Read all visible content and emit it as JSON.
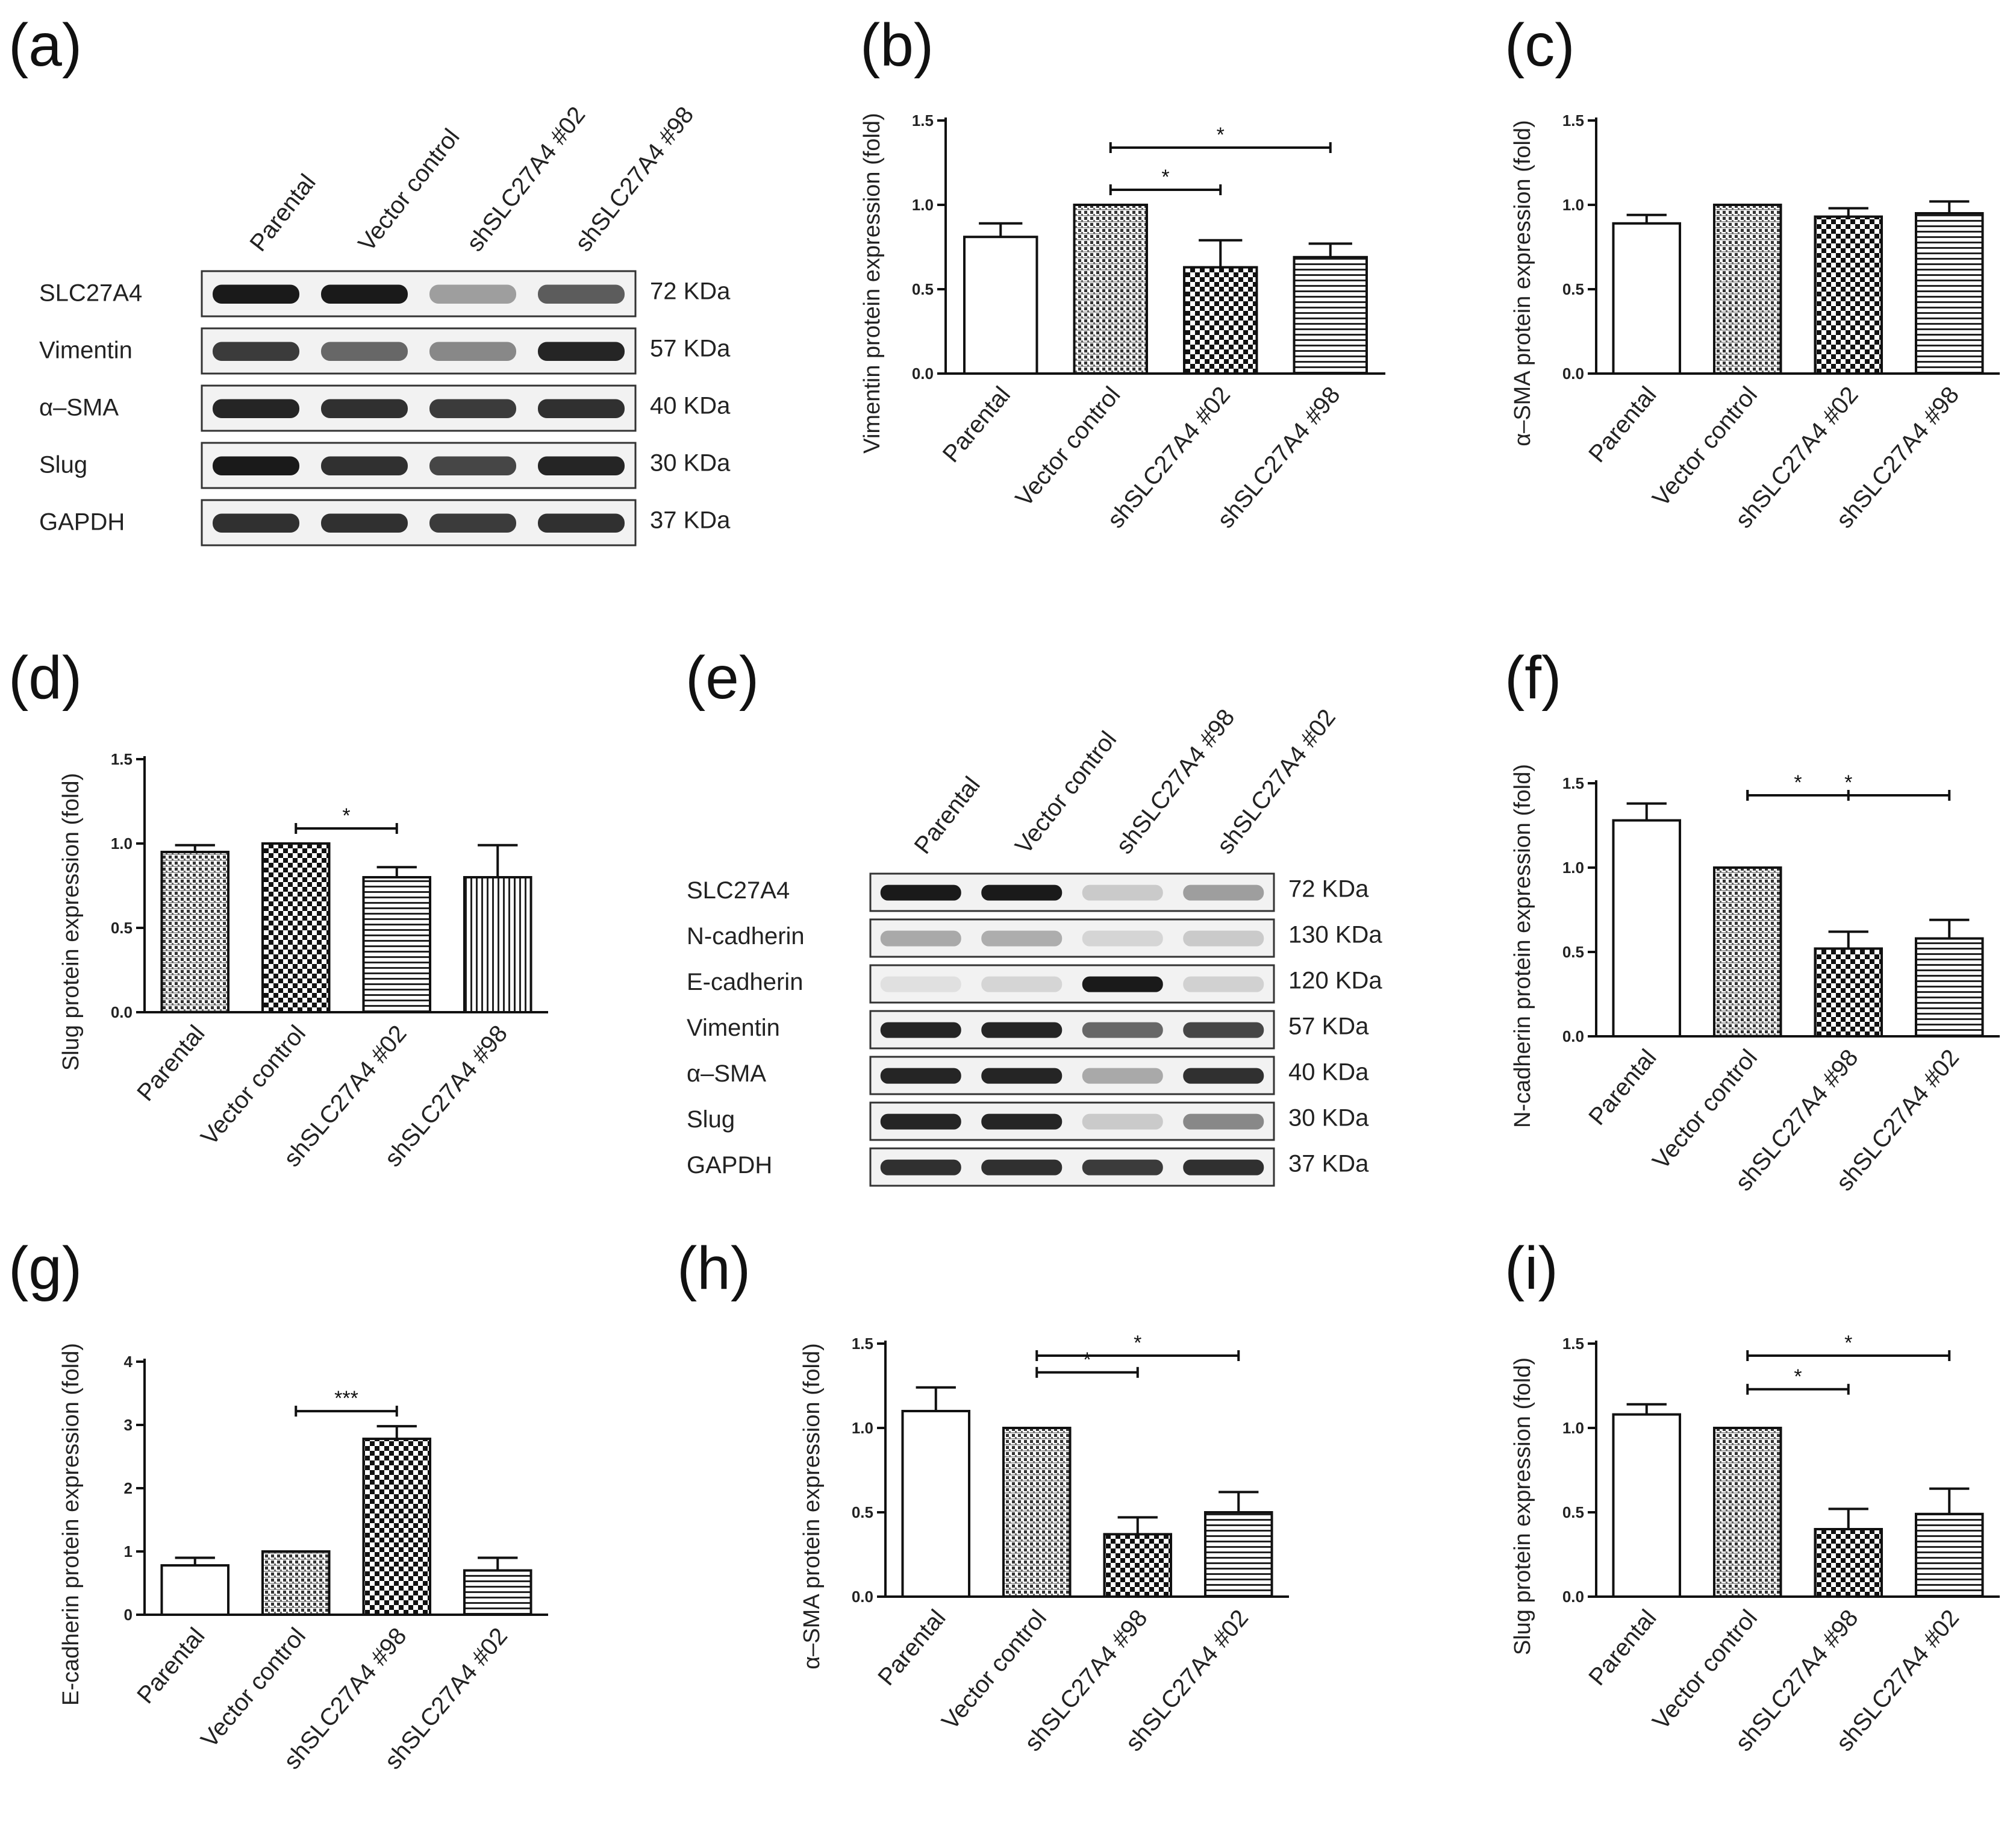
{
  "panel_labels": {
    "a": "(a)",
    "b": "(b)",
    "c": "(c)",
    "d": "(d)",
    "e": "(e)",
    "f": "(f)",
    "g": "(g)",
    "h": "(h)",
    "i": "(i)"
  },
  "blots": {
    "a": {
      "lanes": [
        "Parental",
        "Vector control",
        "shSLC27A4 #02",
        "shSLC27A4 #98"
      ],
      "rows": [
        {
          "name": "SLC27A4",
          "kda": "72 KDa",
          "intensity": [
            0.95,
            0.95,
            0.35,
            0.65
          ]
        },
        {
          "name": "Vimentin",
          "kda": "57 KDa",
          "intensity": [
            0.8,
            0.6,
            0.45,
            0.9
          ]
        },
        {
          "name": "α–SMA",
          "kda": "40 KDa",
          "intensity": [
            0.9,
            0.85,
            0.8,
            0.85
          ]
        },
        {
          "name": "Slug",
          "kda": "30 KDa",
          "intensity": [
            0.95,
            0.85,
            0.75,
            0.9
          ]
        },
        {
          "name": "GAPDH",
          "kda": "37 KDa",
          "intensity": [
            0.85,
            0.85,
            0.8,
            0.85
          ]
        }
      ]
    },
    "e": {
      "lanes": [
        "Parental",
        "Vector control",
        "shSLC27A4 #98",
        "shSLC27A4 #02"
      ],
      "rows": [
        {
          "name": "SLC27A4",
          "kda": "72 KDa",
          "intensity": [
            0.95,
            0.95,
            0.15,
            0.35
          ]
        },
        {
          "name": "N-cadherin",
          "kda": "130 KDa",
          "intensity": [
            0.3,
            0.28,
            0.1,
            0.15
          ]
        },
        {
          "name": "E-cadherin",
          "kda": "120 KDa",
          "intensity": [
            0.05,
            0.1,
            0.95,
            0.12
          ]
        },
        {
          "name": "Vimentin",
          "kda": "57 KDa",
          "intensity": [
            0.9,
            0.9,
            0.6,
            0.75
          ]
        },
        {
          "name": "α–SMA",
          "kda": "40 KDa",
          "intensity": [
            0.9,
            0.9,
            0.3,
            0.85
          ]
        },
        {
          "name": "Slug",
          "kda": "30 KDa",
          "intensity": [
            0.9,
            0.9,
            0.15,
            0.45
          ]
        },
        {
          "name": "GAPDH",
          "kda": "37 KDa",
          "intensity": [
            0.85,
            0.85,
            0.8,
            0.85
          ]
        }
      ]
    }
  },
  "chart_data": [
    {
      "id": "b",
      "type": "bar",
      "categories": [
        "Parental",
        "Vector control",
        "shSLC27A4 #02",
        "shSLC27A4 #98"
      ],
      "values": [
        0.81,
        1.0,
        0.63,
        0.69
      ],
      "errors": [
        0.08,
        0,
        0.16,
        0.08
      ],
      "patterns": [
        "open",
        "dots",
        "checker",
        "hlines"
      ],
      "ylabel": "Vimentin protein expression  (fold)",
      "ylim": [
        0,
        1.5
      ],
      "yticks": [
        "0.0",
        "0.5",
        "1.0",
        "1.5"
      ],
      "ytick_values": [
        0,
        0.5,
        1.0,
        1.5
      ],
      "significance": [
        {
          "from": 1,
          "to": 2,
          "label": "*"
        },
        {
          "from": 1,
          "to": 3,
          "label": "*"
        }
      ]
    },
    {
      "id": "c",
      "type": "bar",
      "categories": [
        "Parental",
        "Vector control",
        "shSLC27A4 #02",
        "shSLC27A4 #98"
      ],
      "values": [
        0.89,
        1.0,
        0.93,
        0.95
      ],
      "errors": [
        0.05,
        0,
        0.05,
        0.07
      ],
      "patterns": [
        "open",
        "dots",
        "checker",
        "hlines"
      ],
      "ylabel": "α–SMA protein expression  (fold)",
      "ylim": [
        0,
        1.5
      ],
      "yticks": [
        "0.0",
        "0.5",
        "1.0",
        "1.5"
      ],
      "ytick_values": [
        0,
        0.5,
        1.0,
        1.5
      ],
      "significance": []
    },
    {
      "id": "d",
      "type": "bar",
      "categories": [
        "Parental",
        "Vector control",
        "shSLC27A4 #02",
        "shSLC27A4 #98"
      ],
      "values": [
        0.95,
        1.0,
        0.8,
        0.8
      ],
      "errors": [
        0.04,
        0,
        0.06,
        0.19
      ],
      "patterns": [
        "dots",
        "checker",
        "hlines",
        "vlines"
      ],
      "ylabel": "Slug protein expression  (fold)",
      "ylim": [
        0,
        1.5
      ],
      "yticks": [
        "0.0",
        "0.5",
        "1.0",
        "1.5"
      ],
      "ytick_values": [
        0,
        0.5,
        1.0,
        1.5
      ],
      "significance": [
        {
          "from": 1,
          "to": 2,
          "label": "*"
        }
      ]
    },
    {
      "id": "f",
      "type": "bar",
      "categories": [
        "Parental",
        "Vector control",
        "shSLC27A4 #98",
        "shSLC27A4 #02"
      ],
      "values": [
        1.28,
        1.0,
        0.52,
        0.58
      ],
      "errors": [
        0.1,
        0,
        0.1,
        0.11
      ],
      "patterns": [
        "open",
        "dots",
        "checker",
        "hlines"
      ],
      "ylabel": "N-cadherin protein expression  (fold)",
      "ylim": [
        0,
        1.5
      ],
      "yticks": [
        "0.0",
        "0.5",
        "1.0",
        "1.5"
      ],
      "ytick_values": [
        0,
        0.5,
        1.0,
        1.5
      ],
      "significance": [
        {
          "from": 1,
          "to": 2,
          "label": "*"
        },
        {
          "from": 1,
          "to": 3,
          "label": "*"
        }
      ]
    },
    {
      "id": "g",
      "type": "bar",
      "categories": [
        "Parental",
        "Vector control",
        "shSLC27A4 #98",
        "shSLC27A4 #02"
      ],
      "values": [
        0.78,
        1.0,
        2.78,
        0.7
      ],
      "errors": [
        0.12,
        0,
        0.2,
        0.2
      ],
      "patterns": [
        "open",
        "dots",
        "checker",
        "hlines"
      ],
      "ylabel": "E-cadherin protein expression  (fold)",
      "ylim": [
        0,
        4
      ],
      "yticks": [
        "0",
        "1",
        "2",
        "3",
        "4"
      ],
      "ytick_values": [
        0,
        1,
        2,
        3,
        4
      ],
      "significance": [
        {
          "from": 1,
          "to": 2,
          "label": "***"
        }
      ]
    },
    {
      "id": "h",
      "type": "bar",
      "categories": [
        "Parental",
        "Vector control",
        "shSLC27A4 #98",
        "shSLC27A4 #02"
      ],
      "values": [
        1.1,
        1.0,
        0.37,
        0.5
      ],
      "errors": [
        0.14,
        0,
        0.1,
        0.12
      ],
      "patterns": [
        "open",
        "dots",
        "checker",
        "hlines"
      ],
      "ylabel": "α–SMA protein expression  (fold)",
      "ylim": [
        0,
        1.5
      ],
      "yticks": [
        "0.0",
        "0.5",
        "1.0",
        "1.5"
      ],
      "ytick_values": [
        0,
        0.5,
        1.0,
        1.5
      ],
      "significance": [
        {
          "from": 1,
          "to": 2,
          "label": "*"
        },
        {
          "from": 1,
          "to": 3,
          "label": "*"
        }
      ]
    },
    {
      "id": "i",
      "type": "bar",
      "categories": [
        "Parental",
        "Vector control",
        "shSLC27A4 #98",
        "shSLC27A4 #02"
      ],
      "values": [
        1.08,
        1.0,
        0.4,
        0.49
      ],
      "errors": [
        0.06,
        0,
        0.12,
        0.15
      ],
      "patterns": [
        "open",
        "dots",
        "checker",
        "hlines"
      ],
      "ylabel": "Slug protein expression  (fold)",
      "ylim": [
        0,
        1.5
      ],
      "yticks": [
        "0.0",
        "0.5",
        "1.0",
        "1.5"
      ],
      "ytick_values": [
        0,
        0.5,
        1.0,
        1.5
      ],
      "significance": [
        {
          "from": 1,
          "to": 2,
          "label": "*"
        },
        {
          "from": 1,
          "to": 3,
          "label": "*"
        }
      ]
    }
  ]
}
